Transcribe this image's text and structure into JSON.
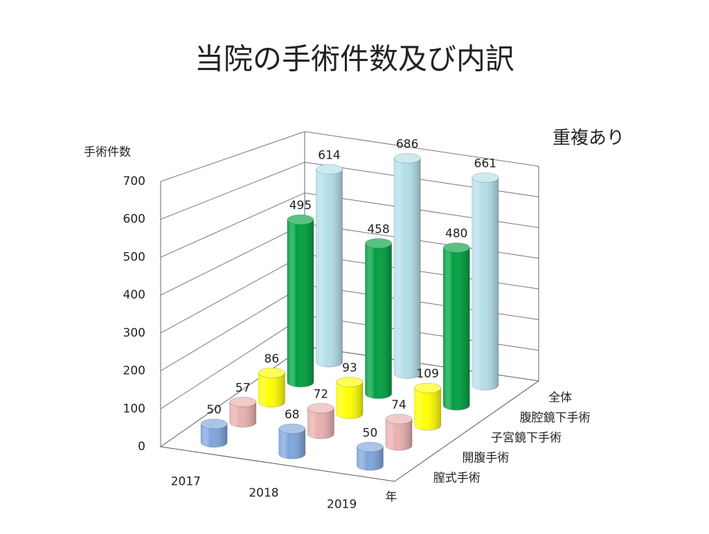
{
  "chart_data": {
    "type": "bar3d",
    "title": "当院の手術件数及び内訳",
    "y_label": "手術件数",
    "x_label": "年",
    "note": "重複あり",
    "categories": [
      "2017",
      "2018",
      "2019"
    ],
    "series": [
      {
        "name": "膣式手術",
        "color": "#7ea6dc",
        "values": [
          50,
          68,
          50
        ]
      },
      {
        "name": "開腹手術",
        "color": "#e8b0ae",
        "values": [
          57,
          72,
          74
        ]
      },
      {
        "name": "子宮鏡下手術",
        "color": "#ffff00",
        "values": [
          86,
          93,
          109
        ]
      },
      {
        "name": "腹腔鏡下手術",
        "color": "#00a040",
        "values": [
          495,
          458,
          480
        ]
      },
      {
        "name": "全体",
        "color": "#b4dfea",
        "values": [
          614,
          686,
          661
        ]
      }
    ],
    "ylim": [
      0,
      700
    ],
    "yticks": [
      0,
      100,
      200,
      300,
      400,
      500,
      600,
      700
    ],
    "grid": true
  }
}
